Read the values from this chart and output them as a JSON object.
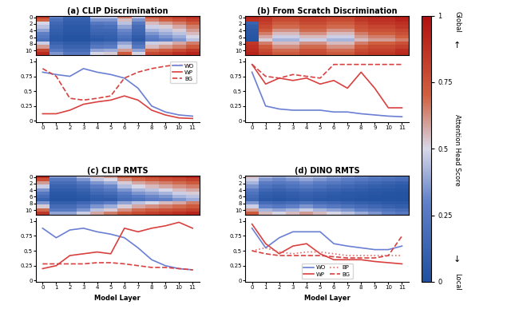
{
  "title_a": "(a) CLIP Discrimination",
  "title_b": "(b) From Scratch Discrimination",
  "title_c": "(c) CLIP RMTS",
  "title_d": "(d) DINO RMTS",
  "xlabel": "Model Layer",
  "colorbar_label": "Attention Head Score",
  "colorbar_ticks": [
    0,
    0.25,
    0.5,
    0.75,
    1.0
  ],
  "colorbar_ticklabels": [
    "0",
    "0.25",
    "0.5",
    "0.75",
    "1"
  ],
  "layers": [
    0,
    1,
    2,
    3,
    4,
    5,
    6,
    7,
    8,
    9,
    10,
    11
  ],
  "heatmap_a": [
    [
      0.85,
      0.3,
      0.15,
      0.15,
      0.45,
      0.45,
      0.65,
      0.45,
      0.75,
      0.8,
      0.85,
      0.9
    ],
    [
      0.7,
      0.2,
      0.1,
      0.1,
      0.35,
      0.35,
      0.55,
      0.35,
      0.65,
      0.7,
      0.75,
      0.82
    ],
    [
      0.5,
      0.15,
      0.08,
      0.08,
      0.25,
      0.28,
      0.45,
      0.25,
      0.55,
      0.6,
      0.65,
      0.72
    ],
    [
      0.45,
      0.12,
      0.06,
      0.06,
      0.18,
      0.2,
      0.38,
      0.18,
      0.48,
      0.52,
      0.58,
      0.65
    ],
    [
      0.38,
      0.1,
      0.05,
      0.05,
      0.15,
      0.15,
      0.32,
      0.15,
      0.42,
      0.45,
      0.52,
      0.6
    ],
    [
      0.3,
      0.08,
      0.04,
      0.04,
      0.12,
      0.12,
      0.28,
      0.12,
      0.35,
      0.4,
      0.45,
      0.55
    ],
    [
      0.25,
      0.06,
      0.03,
      0.03,
      0.08,
      0.1,
      0.22,
      0.08,
      0.3,
      0.35,
      0.4,
      0.5
    ],
    [
      0.2,
      0.05,
      0.02,
      0.02,
      0.06,
      0.08,
      0.18,
      0.06,
      0.25,
      0.3,
      0.35,
      0.45
    ],
    [
      0.48,
      0.12,
      0.08,
      0.08,
      0.18,
      0.2,
      0.38,
      0.18,
      0.48,
      0.52,
      0.58,
      0.65
    ],
    [
      0.6,
      0.18,
      0.12,
      0.12,
      0.25,
      0.28,
      0.45,
      0.25,
      0.55,
      0.6,
      0.65,
      0.72
    ],
    [
      0.8,
      0.25,
      0.18,
      0.18,
      0.38,
      0.4,
      0.6,
      0.38,
      0.68,
      0.72,
      0.78,
      0.85
    ],
    [
      0.9,
      0.35,
      0.25,
      0.25,
      0.5,
      0.52,
      0.72,
      0.5,
      0.78,
      0.82,
      0.88,
      0.92
    ]
  ],
  "heatmap_b": [
    [
      0.92,
      0.88,
      0.82,
      0.82,
      0.85,
      0.85,
      0.82,
      0.82,
      0.88,
      0.92,
      0.92,
      0.95
    ],
    [
      0.88,
      0.85,
      0.78,
      0.78,
      0.82,
      0.82,
      0.78,
      0.78,
      0.85,
      0.88,
      0.88,
      0.92
    ],
    [
      0.12,
      0.82,
      0.72,
      0.72,
      0.78,
      0.78,
      0.72,
      0.72,
      0.8,
      0.85,
      0.85,
      0.88
    ],
    [
      0.08,
      0.78,
      0.68,
      0.68,
      0.72,
      0.72,
      0.68,
      0.68,
      0.75,
      0.8,
      0.8,
      0.85
    ],
    [
      0.06,
      0.72,
      0.62,
      0.62,
      0.68,
      0.68,
      0.62,
      0.62,
      0.72,
      0.75,
      0.75,
      0.8
    ],
    [
      0.05,
      0.65,
      0.55,
      0.55,
      0.62,
      0.62,
      0.55,
      0.55,
      0.65,
      0.7,
      0.7,
      0.75
    ],
    [
      0.04,
      0.58,
      0.48,
      0.48,
      0.55,
      0.55,
      0.48,
      0.48,
      0.6,
      0.65,
      0.65,
      0.7
    ],
    [
      0.03,
      0.52,
      0.42,
      0.42,
      0.48,
      0.48,
      0.42,
      0.42,
      0.55,
      0.6,
      0.6,
      0.65
    ],
    [
      0.85,
      0.65,
      0.55,
      0.55,
      0.62,
      0.62,
      0.55,
      0.55,
      0.65,
      0.7,
      0.7,
      0.75
    ],
    [
      0.88,
      0.72,
      0.62,
      0.62,
      0.68,
      0.68,
      0.62,
      0.62,
      0.72,
      0.78,
      0.78,
      0.82
    ],
    [
      0.9,
      0.78,
      0.68,
      0.68,
      0.75,
      0.75,
      0.68,
      0.68,
      0.78,
      0.82,
      0.82,
      0.88
    ],
    [
      0.92,
      0.82,
      0.72,
      0.72,
      0.78,
      0.78,
      0.72,
      0.72,
      0.82,
      0.85,
      0.85,
      0.9
    ]
  ],
  "heatmap_c": [
    [
      0.9,
      0.35,
      0.35,
      0.45,
      0.55,
      0.6,
      0.72,
      0.78,
      0.82,
      0.85,
      0.88,
      0.92
    ],
    [
      0.75,
      0.25,
      0.25,
      0.35,
      0.45,
      0.5,
      0.62,
      0.68,
      0.72,
      0.75,
      0.78,
      0.82
    ],
    [
      0.6,
      0.18,
      0.18,
      0.25,
      0.35,
      0.4,
      0.52,
      0.58,
      0.62,
      0.65,
      0.68,
      0.72
    ],
    [
      0.48,
      0.12,
      0.12,
      0.18,
      0.28,
      0.32,
      0.44,
      0.5,
      0.55,
      0.58,
      0.62,
      0.65
    ],
    [
      0.35,
      0.08,
      0.08,
      0.12,
      0.2,
      0.25,
      0.35,
      0.42,
      0.45,
      0.5,
      0.55,
      0.58
    ],
    [
      0.25,
      0.05,
      0.05,
      0.08,
      0.15,
      0.18,
      0.28,
      0.35,
      0.38,
      0.42,
      0.48,
      0.52
    ],
    [
      0.18,
      0.04,
      0.04,
      0.06,
      0.1,
      0.12,
      0.22,
      0.28,
      0.32,
      0.35,
      0.42,
      0.45
    ],
    [
      0.12,
      0.03,
      0.03,
      0.04,
      0.08,
      0.08,
      0.18,
      0.22,
      0.28,
      0.3,
      0.35,
      0.4
    ],
    [
      0.35,
      0.1,
      0.1,
      0.15,
      0.22,
      0.28,
      0.38,
      0.45,
      0.5,
      0.55,
      0.58,
      0.65
    ],
    [
      0.52,
      0.18,
      0.18,
      0.25,
      0.35,
      0.4,
      0.52,
      0.58,
      0.62,
      0.65,
      0.68,
      0.72
    ],
    [
      0.68,
      0.25,
      0.25,
      0.35,
      0.45,
      0.52,
      0.62,
      0.68,
      0.72,
      0.75,
      0.78,
      0.82
    ],
    [
      0.85,
      0.38,
      0.38,
      0.48,
      0.58,
      0.65,
      0.72,
      0.78,
      0.82,
      0.85,
      0.88,
      0.92
    ]
  ],
  "heatmap_d": [
    [
      0.55,
      0.42,
      0.38,
      0.42,
      0.45,
      0.42,
      0.38,
      0.35,
      0.32,
      0.28,
      0.25,
      0.22
    ],
    [
      0.48,
      0.35,
      0.32,
      0.35,
      0.38,
      0.35,
      0.32,
      0.28,
      0.25,
      0.22,
      0.2,
      0.18
    ],
    [
      0.42,
      0.28,
      0.25,
      0.28,
      0.32,
      0.28,
      0.25,
      0.22,
      0.18,
      0.15,
      0.12,
      0.1
    ],
    [
      0.35,
      0.22,
      0.18,
      0.22,
      0.25,
      0.22,
      0.18,
      0.15,
      0.12,
      0.1,
      0.08,
      0.06
    ],
    [
      0.28,
      0.15,
      0.12,
      0.15,
      0.18,
      0.15,
      0.12,
      0.1,
      0.08,
      0.06,
      0.05,
      0.04
    ],
    [
      0.22,
      0.1,
      0.08,
      0.1,
      0.12,
      0.1,
      0.08,
      0.06,
      0.05,
      0.04,
      0.03,
      0.02
    ],
    [
      0.18,
      0.08,
      0.06,
      0.08,
      0.1,
      0.08,
      0.06,
      0.05,
      0.04,
      0.03,
      0.02,
      0.02
    ],
    [
      0.15,
      0.06,
      0.04,
      0.06,
      0.08,
      0.06,
      0.05,
      0.04,
      0.03,
      0.02,
      0.02,
      0.02
    ],
    [
      0.35,
      0.18,
      0.15,
      0.18,
      0.22,
      0.18,
      0.15,
      0.12,
      0.1,
      0.08,
      0.06,
      0.05
    ],
    [
      0.48,
      0.3,
      0.25,
      0.3,
      0.35,
      0.3,
      0.25,
      0.22,
      0.18,
      0.15,
      0.12,
      0.1
    ],
    [
      0.6,
      0.42,
      0.38,
      0.42,
      0.48,
      0.42,
      0.38,
      0.35,
      0.3,
      0.25,
      0.22,
      0.18
    ],
    [
      0.72,
      0.55,
      0.5,
      0.55,
      0.6,
      0.55,
      0.5,
      0.45,
      0.4,
      0.35,
      0.3,
      0.25
    ]
  ],
  "line_a_WO": [
    0.82,
    0.78,
    0.75,
    0.88,
    0.82,
    0.78,
    0.72,
    0.55,
    0.25,
    0.15,
    0.1,
    0.08
  ],
  "line_a_WP": [
    0.12,
    0.12,
    0.18,
    0.28,
    0.32,
    0.35,
    0.42,
    0.35,
    0.18,
    0.1,
    0.05,
    0.04
  ],
  "line_a_BG": [
    0.88,
    0.75,
    0.38,
    0.35,
    0.38,
    0.42,
    0.72,
    0.82,
    0.88,
    0.92,
    0.95,
    0.93
  ],
  "line_b_WO": [
    0.82,
    0.25,
    0.2,
    0.18,
    0.18,
    0.18,
    0.15,
    0.15,
    0.12,
    0.1,
    0.08,
    0.07
  ],
  "line_b_WP": [
    0.95,
    0.62,
    0.72,
    0.68,
    0.72,
    0.62,
    0.68,
    0.55,
    0.82,
    0.55,
    0.22,
    0.22
  ],
  "line_b_BG": [
    0.95,
    0.75,
    0.72,
    0.78,
    0.75,
    0.72,
    0.95,
    0.95,
    0.95,
    0.95,
    0.95,
    0.95
  ],
  "line_c_WO": [
    0.88,
    0.72,
    0.85,
    0.88,
    0.82,
    0.78,
    0.72,
    0.55,
    0.35,
    0.25,
    0.2,
    0.18
  ],
  "line_c_WP": [
    0.2,
    0.25,
    0.42,
    0.45,
    0.48,
    0.45,
    0.88,
    0.82,
    0.88,
    0.92,
    0.98,
    0.88
  ],
  "line_c_BG": [
    0.28,
    0.28,
    0.28,
    0.28,
    0.3,
    0.3,
    0.28,
    0.25,
    0.22,
    0.22,
    0.2,
    0.18
  ],
  "line_d_WO": [
    0.88,
    0.55,
    0.72,
    0.82,
    0.82,
    0.82,
    0.62,
    0.58,
    0.55,
    0.52,
    0.52,
    0.58
  ],
  "line_d_WP": [
    0.95,
    0.62,
    0.45,
    0.58,
    0.62,
    0.45,
    0.35,
    0.35,
    0.35,
    0.32,
    0.3,
    0.28
  ],
  "line_d_BP": [
    0.5,
    0.55,
    0.48,
    0.45,
    0.48,
    0.48,
    0.45,
    0.42,
    0.42,
    0.42,
    0.42,
    0.42
  ],
  "line_d_BG": [
    0.5,
    0.45,
    0.42,
    0.42,
    0.42,
    0.42,
    0.4,
    0.38,
    0.38,
    0.38,
    0.42,
    0.75
  ],
  "line_color_WO": "#6a7fd4",
  "line_color_WP": "#d94040",
  "line_color_BP": "#e07070",
  "line_color_BG": "#d94040",
  "n_heads": 12,
  "n_layers": 12
}
